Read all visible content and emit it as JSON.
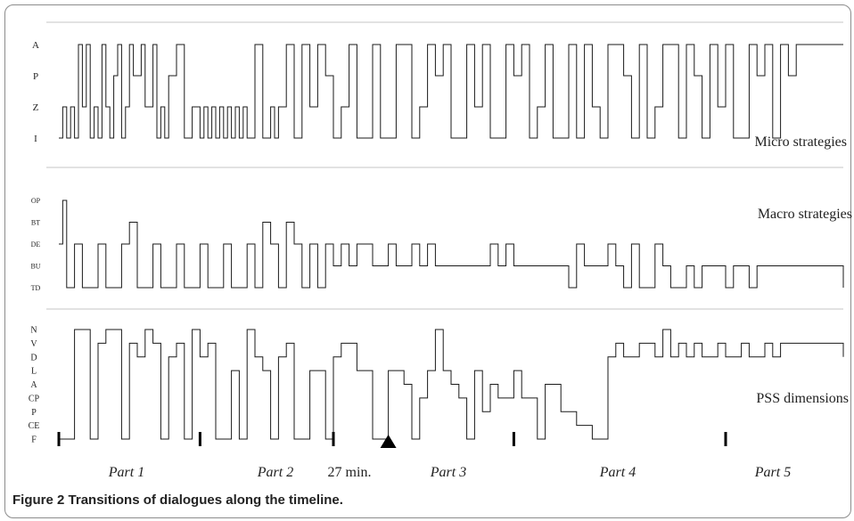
{
  "caption": {
    "label": "Figure 2",
    "text": "Transitions of dialogues along the timeline."
  },
  "chart_data": {
    "type": "line",
    "style": "step",
    "x_range_minutes": [
      0,
      100
    ],
    "strips": [
      {
        "name": "Micro strategies",
        "levels": [
          "A",
          "P",
          "Z",
          "I"
        ],
        "series": [
          [
            "I",
            0
          ],
          [
            "Z",
            0.5
          ],
          [
            "I",
            1
          ],
          [
            "Z",
            1.5
          ],
          [
            "I",
            2
          ],
          [
            "A",
            2.5
          ],
          [
            "Z",
            3
          ],
          [
            "A",
            3.5
          ],
          [
            "I",
            4
          ],
          [
            "Z",
            4.5
          ],
          [
            "I",
            5
          ],
          [
            "A",
            5.5
          ],
          [
            "Z",
            6
          ],
          [
            "I",
            6.5
          ],
          [
            "P",
            7
          ],
          [
            "A",
            7.5
          ],
          [
            "I",
            8
          ],
          [
            "Z",
            8.5
          ],
          [
            "A",
            9
          ],
          [
            "P",
            9.5
          ],
          [
            "A",
            10.5
          ],
          [
            "Z",
            11
          ],
          [
            "A",
            12
          ],
          [
            "I",
            12.5
          ],
          [
            "Z",
            13
          ],
          [
            "I",
            13.5
          ],
          [
            "P",
            14
          ],
          [
            "A",
            15
          ],
          [
            "I",
            16
          ],
          [
            "Z",
            17
          ],
          [
            "I",
            18
          ],
          [
            "Z",
            18.5
          ],
          [
            "I",
            19
          ],
          [
            "Z",
            19.5
          ],
          [
            "I",
            20
          ],
          [
            "Z",
            20.5
          ],
          [
            "I",
            21
          ],
          [
            "Z",
            21.5
          ],
          [
            "I",
            22
          ],
          [
            "Z",
            22.5
          ],
          [
            "I",
            23
          ],
          [
            "Z",
            23.5
          ],
          [
            "I",
            24
          ],
          [
            "A",
            25
          ],
          [
            "I",
            26
          ],
          [
            "Z",
            27
          ],
          [
            "I",
            27.5
          ],
          [
            "Z",
            28
          ],
          [
            "A",
            29
          ],
          [
            "I",
            30
          ],
          [
            "A",
            31
          ],
          [
            "Z",
            32
          ],
          [
            "A",
            33
          ],
          [
            "P",
            34
          ],
          [
            "I",
            35
          ],
          [
            "Z",
            36
          ],
          [
            "A",
            37
          ],
          [
            "I",
            38
          ],
          [
            "A",
            40
          ],
          [
            "I",
            41
          ],
          [
            "A",
            43
          ],
          [
            "I",
            45
          ],
          [
            "Z",
            46
          ],
          [
            "A",
            47
          ],
          [
            "P",
            48
          ],
          [
            "A",
            49
          ],
          [
            "I",
            50
          ],
          [
            "A",
            52
          ],
          [
            "Z",
            53
          ],
          [
            "A",
            54
          ],
          [
            "I",
            55
          ],
          [
            "A",
            57
          ],
          [
            "P",
            58
          ],
          [
            "A",
            59
          ],
          [
            "I",
            60
          ],
          [
            "Z",
            61
          ],
          [
            "A",
            62
          ],
          [
            "I",
            63
          ],
          [
            "A",
            65
          ],
          [
            "I",
            66
          ],
          [
            "A",
            67
          ],
          [
            "Z",
            68
          ],
          [
            "I",
            69
          ],
          [
            "A",
            70
          ],
          [
            "P",
            72
          ],
          [
            "I",
            73
          ],
          [
            "A",
            74
          ],
          [
            "I",
            75
          ],
          [
            "Z",
            76
          ],
          [
            "A",
            77
          ],
          [
            "I",
            79
          ],
          [
            "A",
            80
          ],
          [
            "P",
            81
          ],
          [
            "I",
            82
          ],
          [
            "A",
            83
          ],
          [
            "Z",
            84
          ],
          [
            "A",
            85
          ],
          [
            "I",
            86
          ],
          [
            "A",
            88
          ],
          [
            "P",
            89
          ],
          [
            "A",
            90
          ],
          [
            "I",
            91
          ],
          [
            "A",
            92
          ],
          [
            "P",
            93
          ],
          [
            "A",
            94
          ],
          [
            "A",
            100
          ]
        ]
      },
      {
        "name": "Macro strategies",
        "levels": [
          "OP",
          "BT",
          "DE",
          "BU",
          "TD"
        ],
        "series": [
          [
            "DE",
            0
          ],
          [
            "OP",
            0.5
          ],
          [
            "TD",
            1
          ],
          [
            "DE",
            2
          ],
          [
            "TD",
            3
          ],
          [
            "DE",
            5
          ],
          [
            "TD",
            6
          ],
          [
            "DE",
            8
          ],
          [
            "BT",
            9
          ],
          [
            "TD",
            10
          ],
          [
            "DE",
            12
          ],
          [
            "TD",
            13
          ],
          [
            "DE",
            15
          ],
          [
            "TD",
            16
          ],
          [
            "DE",
            18
          ],
          [
            "TD",
            19
          ],
          [
            "DE",
            21
          ],
          [
            "TD",
            22
          ],
          [
            "DE",
            24
          ],
          [
            "TD",
            25
          ],
          [
            "BT",
            26
          ],
          [
            "DE",
            27
          ],
          [
            "TD",
            28
          ],
          [
            "BT",
            29
          ],
          [
            "DE",
            30
          ],
          [
            "TD",
            31
          ],
          [
            "DE",
            32
          ],
          [
            "TD",
            33
          ],
          [
            "DE",
            34
          ],
          [
            "BU",
            35
          ],
          [
            "DE",
            36
          ],
          [
            "BU",
            37
          ],
          [
            "DE",
            38
          ],
          [
            "BU",
            40
          ],
          [
            "DE",
            42
          ],
          [
            "BU",
            43
          ],
          [
            "DE",
            45
          ],
          [
            "BU",
            46
          ],
          [
            "DE",
            47
          ],
          [
            "BU",
            48
          ],
          [
            "DE",
            55
          ],
          [
            "BU",
            56
          ],
          [
            "DE",
            57
          ],
          [
            "BU",
            58
          ],
          [
            "TD",
            65
          ],
          [
            "DE",
            66
          ],
          [
            "BU",
            67
          ],
          [
            "DE",
            70
          ],
          [
            "BU",
            71
          ],
          [
            "TD",
            72
          ],
          [
            "DE",
            73
          ],
          [
            "TD",
            74
          ],
          [
            "DE",
            76
          ],
          [
            "BU",
            77
          ],
          [
            "TD",
            78
          ],
          [
            "BU",
            80
          ],
          [
            "TD",
            81
          ],
          [
            "BU",
            82
          ],
          [
            "TD",
            85
          ],
          [
            "BU",
            86
          ],
          [
            "TD",
            88
          ],
          [
            "BU",
            89
          ],
          [
            "TD",
            100
          ]
        ]
      },
      {
        "name": "PSS dimensions",
        "levels": [
          "N",
          "V",
          "D",
          "L",
          "A",
          "CP",
          "P",
          "CE",
          "F"
        ],
        "series": [
          [
            "F",
            0
          ],
          [
            "N",
            2
          ],
          [
            "F",
            4
          ],
          [
            "V",
            5
          ],
          [
            "N",
            6
          ],
          [
            "F",
            8
          ],
          [
            "V",
            9
          ],
          [
            "D",
            10
          ],
          [
            "N",
            11
          ],
          [
            "V",
            12
          ],
          [
            "F",
            13
          ],
          [
            "D",
            14
          ],
          [
            "V",
            15
          ],
          [
            "F",
            16
          ],
          [
            "N",
            17
          ],
          [
            "D",
            18
          ],
          [
            "V",
            19
          ],
          [
            "F",
            20
          ],
          [
            "L",
            22
          ],
          [
            "F",
            23
          ],
          [
            "N",
            24
          ],
          [
            "D",
            25
          ],
          [
            "L",
            26
          ],
          [
            "F",
            27
          ],
          [
            "D",
            28
          ],
          [
            "V",
            29
          ],
          [
            "F",
            30
          ],
          [
            "L",
            32
          ],
          [
            "F",
            34
          ],
          [
            "D",
            35
          ],
          [
            "V",
            36
          ],
          [
            "L",
            38
          ],
          [
            "F",
            40
          ],
          [
            "L",
            42
          ],
          [
            "A",
            44
          ],
          [
            "F",
            45
          ],
          [
            "CP",
            46
          ],
          [
            "L",
            47
          ],
          [
            "N",
            48
          ],
          [
            "L",
            49
          ],
          [
            "A",
            50
          ],
          [
            "CP",
            51
          ],
          [
            "F",
            52
          ],
          [
            "L",
            53
          ],
          [
            "P",
            54
          ],
          [
            "A",
            55
          ],
          [
            "CP",
            56
          ],
          [
            "L",
            58
          ],
          [
            "CP",
            59
          ],
          [
            "F",
            61
          ],
          [
            "A",
            62
          ],
          [
            "P",
            64
          ],
          [
            "CE",
            66
          ],
          [
            "F",
            68
          ],
          [
            "D",
            70
          ],
          [
            "V",
            71
          ],
          [
            "D",
            72
          ],
          [
            "V",
            74
          ],
          [
            "D",
            76
          ],
          [
            "N",
            77
          ],
          [
            "D",
            78
          ],
          [
            "V",
            79
          ],
          [
            "D",
            80
          ],
          [
            "V",
            81
          ],
          [
            "D",
            82
          ],
          [
            "V",
            84
          ],
          [
            "D",
            85
          ],
          [
            "V",
            87
          ],
          [
            "D",
            88
          ],
          [
            "V",
            90
          ],
          [
            "D",
            91
          ],
          [
            "V",
            92
          ],
          [
            "D",
            100
          ]
        ]
      }
    ],
    "x_labels": [
      "Part 1",
      "Part 2",
      "27 min.",
      "Part 3",
      "Part 4",
      "Part 5"
    ],
    "part_boundaries_minutes": [
      0,
      18,
      35,
      58,
      85
    ],
    "marker": {
      "label": "27 min.",
      "at_minutes": 42
    }
  }
}
